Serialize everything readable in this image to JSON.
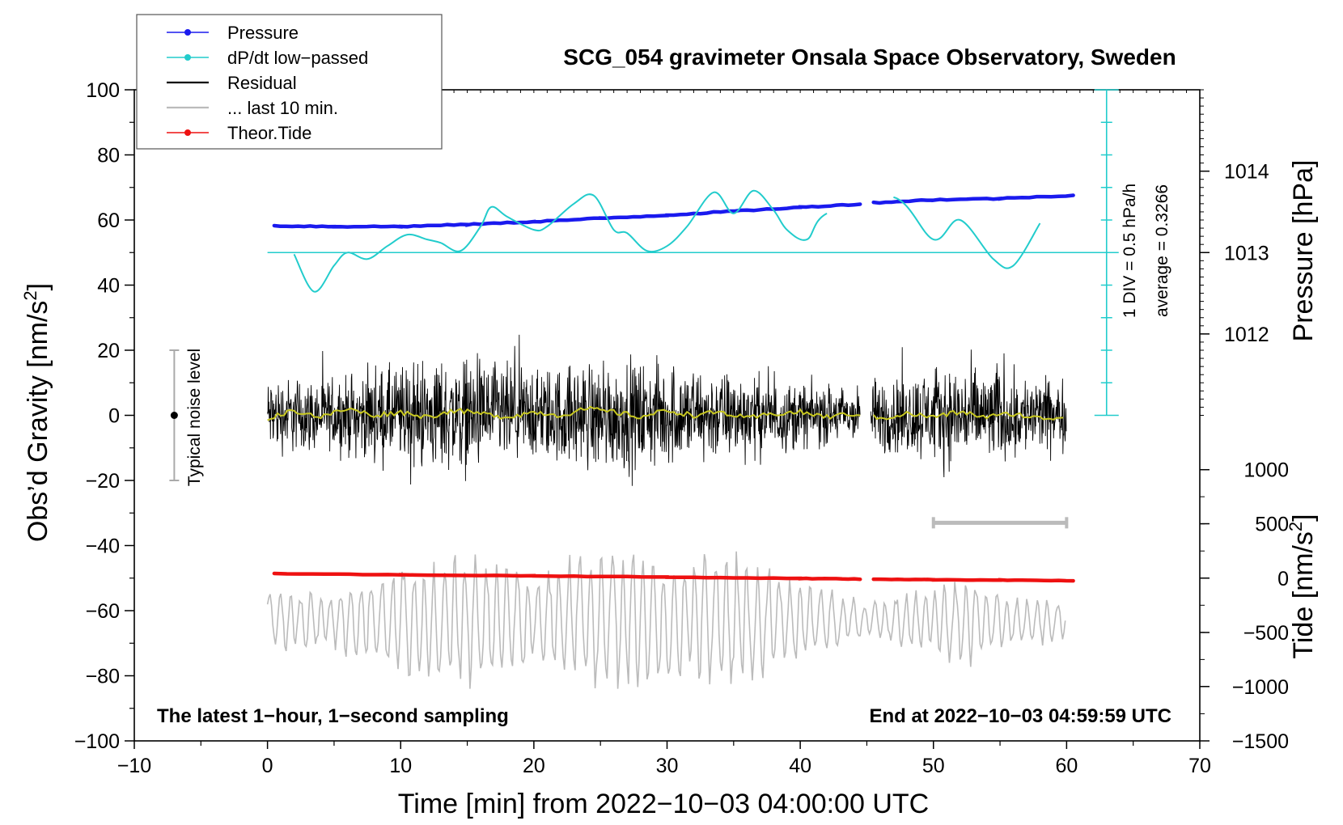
{
  "chart_data": {
    "type": "line",
    "title": "SCG_054 gravimeter Onsala Space Observatory, Sweden",
    "xlabel": "Time [min] from 2022−10−03 04:00:00 UTC",
    "ylabel_left_main": "Obs’d Gravity [nm/s",
    "ylabel_left_sup": "2",
    "ylabel_left_end": "]",
    "ylabel_right_pressure": "Pressure [hPa]",
    "ylabel_right_tide_main": "Tide [nm/s",
    "ylabel_right_tide_sup": "2",
    "ylabel_right_tide_end": "]",
    "xlim": [
      -10,
      70
    ],
    "ylim": [
      -100,
      100
    ],
    "x_ticks": [
      -10,
      0,
      10,
      20,
      30,
      40,
      50,
      60,
      70
    ],
    "x_tick_labels": [
      "−10",
      "0",
      "10",
      "20",
      "30",
      "40",
      "50",
      "60",
      "70"
    ],
    "y_ticks": [
      -100,
      -80,
      -60,
      -40,
      -20,
      0,
      20,
      40,
      60,
      80,
      100
    ],
    "y_tick_labels": [
      "−100",
      "−80",
      "−60",
      "−40",
      "−20",
      "0",
      "20",
      "40",
      "60",
      "80",
      "100"
    ],
    "pressure_axis": {
      "ticks": [
        1012,
        1013,
        1014
      ],
      "tick_labels": [
        "1012",
        "1013",
        "1014"
      ],
      "gravity_equiv": [
        25,
        50,
        75
      ]
    },
    "tide_axis": {
      "ticks": [
        1000,
        500,
        0,
        -500,
        -1000,
        -1500
      ],
      "tick_labels": [
        "1000",
        "500",
        "0",
        "−500",
        "−1000",
        "−1500"
      ],
      "gravity_equiv": [
        -16.7,
        -33.3,
        -50,
        -66.7,
        -83.3,
        -100
      ]
    },
    "legend": [
      {
        "label": "Pressure",
        "color": "#1a1aee",
        "marker": true
      },
      {
        "label": "dP/dt low−passed",
        "color": "#22cccc",
        "marker": true
      },
      {
        "label": "Residual",
        "color": "#000000",
        "marker": false
      },
      {
        "label": "... last 10 min.",
        "color": "#bbbbbb",
        "marker": false
      },
      {
        "label": "Theor.Tide",
        "color": "#ee1111",
        "marker": true
      }
    ],
    "series": [
      {
        "name": "Pressure",
        "color": "#1a1aee",
        "x": [
          0.5,
          5,
          10,
          15,
          20,
          25,
          30,
          35,
          40,
          44.5,
          45.5,
          50,
          55,
          60.5
        ],
        "y": [
          58.2,
          58.0,
          58.0,
          58.6,
          59.5,
          60.5,
          61.5,
          62.7,
          63.9,
          64.9,
          65.3,
          66.2,
          66.6,
          67.6
        ]
      },
      {
        "name": "dP/dt low−passed",
        "color": "#22cccc",
        "x": [
          2,
          3.5,
          5,
          6,
          7.5,
          9,
          10.5,
          12,
          13,
          14.5,
          16,
          16.8,
          18,
          20,
          21,
          23,
          24.5,
          26,
          27,
          28.5,
          30,
          31.5,
          33.5,
          35,
          36.5,
          38,
          39,
          40.5,
          42,
          47,
          50,
          52,
          54.5,
          56,
          58
        ],
        "y": [
          49.5,
          38.0,
          46.0,
          50.0,
          48.0,
          52.0,
          55.5,
          54.0,
          53.0,
          50.5,
          58.0,
          64.0,
          61.0,
          57.0,
          58.0,
          65.0,
          67.5,
          57.0,
          56.0,
          50.5,
          52.0,
          58.0,
          68.5,
          62.0,
          69.0,
          63.0,
          57.0,
          54.0,
          62.0,
          67.0,
          54.0,
          60.0,
          48.0,
          46.0,
          59.0
        ]
      },
      {
        "name": "Residual",
        "color": "#000000",
        "x_range": [
          0,
          60
        ],
        "gap": [
          44.5,
          45.3
        ],
        "envelope": [
          [
            0,
            17
          ],
          [
            5,
            15
          ],
          [
            10,
            22
          ],
          [
            15,
            25
          ],
          [
            20,
            20
          ],
          [
            25,
            24
          ],
          [
            30,
            22
          ],
          [
            35,
            19
          ],
          [
            40,
            14
          ],
          [
            44,
            12
          ],
          [
            46,
            16
          ],
          [
            52,
            22
          ],
          [
            56,
            19
          ],
          [
            60,
            14
          ]
        ]
      },
      {
        "name": "Residual smoothed",
        "color": "#c8c820",
        "x": [
          0,
          2,
          4,
          6,
          8,
          10,
          12,
          14,
          16,
          18,
          20,
          22,
          24,
          26,
          28,
          30,
          32,
          34,
          36,
          38,
          40,
          42,
          44,
          46,
          48,
          50,
          52,
          54,
          56,
          58,
          60
        ],
        "y": [
          -1.0,
          1.5,
          -0.5,
          2.0,
          0.0,
          1.0,
          -0.5,
          1.5,
          0.5,
          -0.5,
          1.0,
          0.0,
          2.0,
          1.0,
          -0.5,
          1.5,
          0.0,
          1.0,
          -1.0,
          0.5,
          1.0,
          -0.5,
          0.5,
          -1.0,
          0.5,
          -0.5,
          1.0,
          -0.5,
          0.5,
          -1.0,
          -0.5
        ]
      },
      {
        "name": "... last 10 min.",
        "color": "#bbbbbb",
        "x_range": [
          0,
          60
        ],
        "center": -63,
        "envelope": [
          [
            0,
            10
          ],
          [
            5,
            10
          ],
          [
            10,
            19
          ],
          [
            15,
            22
          ],
          [
            20,
            16
          ],
          [
            25,
            26
          ],
          [
            30,
            20
          ],
          [
            35,
            23
          ],
          [
            40,
            13
          ],
          [
            45,
            6
          ],
          [
            50,
            12
          ],
          [
            53,
            15
          ],
          [
            56,
            8
          ],
          [
            60,
            8
          ]
        ]
      },
      {
        "name": "Theor.Tide",
        "color": "#ee1111",
        "x": [
          0.5,
          10,
          20,
          30,
          40,
          44.5,
          45.5,
          50,
          55,
          60.5
        ],
        "y": [
          -48.6,
          -49.0,
          -49.3,
          -49.7,
          -50.1,
          -50.3,
          -50.3,
          -50.5,
          -50.6,
          -50.8
        ]
      }
    ],
    "annotations": {
      "noise_label": "Typical noise level",
      "noise_bar": [
        -20,
        20
      ],
      "noise_x": -7,
      "scale_div": "1 DIV = 0.5 hPa/h",
      "scale_avg": "average = 0.3266",
      "scale_x": 63,
      "scale_ticks": [
        0,
        10,
        20,
        30,
        40,
        50,
        60,
        70,
        80,
        90,
        100
      ],
      "baseline_y": 50,
      "last10_bar_x": [
        50,
        60
      ],
      "last10_bar_y": -33,
      "note_left": "The latest 1−hour, 1−second sampling",
      "note_right": "End at 2022−10−03 04:59:59 UTC"
    }
  }
}
